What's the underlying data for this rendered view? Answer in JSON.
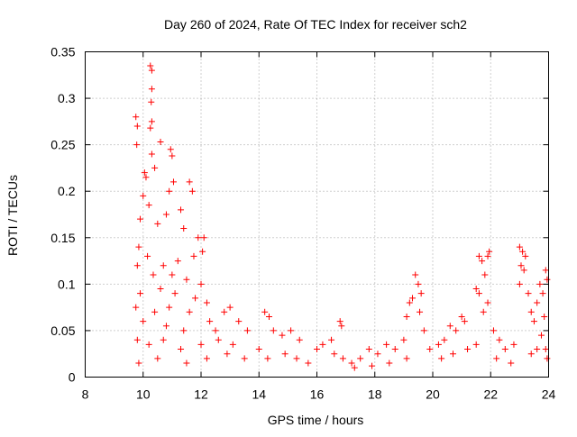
{
  "chart_data": {
    "type": "scatter",
    "title": "Day 260 of 2024, Rate Of TEC Index for receiver sch2",
    "xlabel": "GPS time / hours",
    "ylabel": "ROTI / TECUs",
    "xlim": [
      8,
      24
    ],
    "ylim": [
      0,
      0.35
    ],
    "x_ticks": [
      8,
      10,
      12,
      14,
      16,
      18,
      20,
      22,
      24
    ],
    "x_tick_labels": [
      "8",
      "10",
      "12",
      "14",
      "16",
      "18",
      "20",
      "22",
      "24"
    ],
    "y_ticks": [
      0,
      0.05,
      0.1,
      0.15,
      0.2,
      0.25,
      0.3,
      0.35
    ],
    "y_tick_labels": [
      "0",
      "0.05",
      "0.1",
      "0.15",
      "0.2",
      "0.25",
      "0.3",
      "0.35"
    ],
    "grid": true,
    "marker": "+",
    "marker_color": "#ff0000",
    "series": [
      {
        "name": "ROTI",
        "points": [
          [
            9.75,
            0.28
          ],
          [
            9.8,
            0.27
          ],
          [
            9.78,
            0.25
          ],
          [
            10.25,
            0.335
          ],
          [
            10.3,
            0.33
          ],
          [
            10.3,
            0.31
          ],
          [
            10.28,
            0.296
          ],
          [
            10.3,
            0.275
          ],
          [
            10.25,
            0.268
          ],
          [
            10.6,
            0.253
          ],
          [
            10.95,
            0.245
          ],
          [
            11.0,
            0.238
          ],
          [
            10.05,
            0.22
          ],
          [
            10.1,
            0.215
          ],
          [
            10.3,
            0.24
          ],
          [
            10.4,
            0.225
          ],
          [
            11.05,
            0.21
          ],
          [
            10.9,
            0.2
          ],
          [
            11.6,
            0.21
          ],
          [
            11.7,
            0.2
          ],
          [
            10.0,
            0.195
          ],
          [
            10.2,
            0.185
          ],
          [
            10.8,
            0.175
          ],
          [
            11.3,
            0.18
          ],
          [
            9.9,
            0.17
          ],
          [
            10.5,
            0.165
          ],
          [
            11.4,
            0.16
          ],
          [
            11.9,
            0.15
          ],
          [
            12.1,
            0.15
          ],
          [
            12.05,
            0.135
          ],
          [
            9.85,
            0.14
          ],
          [
            10.15,
            0.13
          ],
          [
            10.7,
            0.12
          ],
          [
            11.2,
            0.125
          ],
          [
            11.75,
            0.13
          ],
          [
            9.8,
            0.12
          ],
          [
            10.35,
            0.11
          ],
          [
            11.0,
            0.11
          ],
          [
            11.5,
            0.105
          ],
          [
            12.0,
            0.1
          ],
          [
            9.9,
            0.09
          ],
          [
            10.6,
            0.095
          ],
          [
            11.1,
            0.09
          ],
          [
            11.8,
            0.085
          ],
          [
            12.2,
            0.08
          ],
          [
            9.75,
            0.075
          ],
          [
            10.4,
            0.07
          ],
          [
            10.9,
            0.075
          ],
          [
            11.6,
            0.07
          ],
          [
            12.3,
            0.06
          ],
          [
            10.0,
            0.06
          ],
          [
            10.8,
            0.055
          ],
          [
            11.4,
            0.05
          ],
          [
            12.5,
            0.05
          ],
          [
            12.8,
            0.07
          ],
          [
            13.0,
            0.075
          ],
          [
            13.3,
            0.06
          ],
          [
            9.8,
            0.04
          ],
          [
            10.2,
            0.035
          ],
          [
            10.7,
            0.04
          ],
          [
            11.3,
            0.03
          ],
          [
            12.0,
            0.035
          ],
          [
            12.6,
            0.04
          ],
          [
            13.1,
            0.035
          ],
          [
            13.6,
            0.05
          ],
          [
            9.85,
            0.015
          ],
          [
            10.5,
            0.02
          ],
          [
            11.5,
            0.015
          ],
          [
            12.2,
            0.02
          ],
          [
            12.9,
            0.025
          ],
          [
            13.5,
            0.02
          ],
          [
            14.0,
            0.03
          ],
          [
            14.2,
            0.07
          ],
          [
            14.35,
            0.065
          ],
          [
            14.5,
            0.05
          ],
          [
            14.8,
            0.045
          ],
          [
            15.1,
            0.05
          ],
          [
            15.4,
            0.04
          ],
          [
            14.3,
            0.02
          ],
          [
            14.9,
            0.025
          ],
          [
            15.3,
            0.02
          ],
          [
            15.7,
            0.015
          ],
          [
            16.0,
            0.03
          ],
          [
            16.2,
            0.035
          ],
          [
            16.5,
            0.04
          ],
          [
            16.8,
            0.06
          ],
          [
            16.85,
            0.055
          ],
          [
            16.6,
            0.025
          ],
          [
            16.9,
            0.02
          ],
          [
            17.2,
            0.015
          ],
          [
            17.5,
            0.02
          ],
          [
            17.8,
            0.03
          ],
          [
            18.1,
            0.025
          ],
          [
            18.4,
            0.035
          ],
          [
            18.7,
            0.03
          ],
          [
            19.0,
            0.04
          ],
          [
            17.3,
            0.01
          ],
          [
            17.9,
            0.012
          ],
          [
            18.5,
            0.015
          ],
          [
            19.1,
            0.02
          ],
          [
            19.4,
            0.11
          ],
          [
            19.5,
            0.1
          ],
          [
            19.3,
            0.085
          ],
          [
            19.2,
            0.08
          ],
          [
            19.1,
            0.065
          ],
          [
            19.6,
            0.09
          ],
          [
            19.55,
            0.07
          ],
          [
            19.7,
            0.05
          ],
          [
            19.9,
            0.03
          ],
          [
            20.2,
            0.035
          ],
          [
            20.4,
            0.04
          ],
          [
            20.6,
            0.055
          ],
          [
            20.8,
            0.05
          ],
          [
            21.0,
            0.065
          ],
          [
            21.1,
            0.06
          ],
          [
            20.3,
            0.02
          ],
          [
            20.7,
            0.025
          ],
          [
            21.2,
            0.03
          ],
          [
            21.5,
            0.035
          ],
          [
            21.6,
            0.13
          ],
          [
            21.7,
            0.125
          ],
          [
            21.9,
            0.13
          ],
          [
            21.95,
            0.135
          ],
          [
            21.8,
            0.11
          ],
          [
            21.6,
            0.09
          ],
          [
            21.5,
            0.095
          ],
          [
            21.75,
            0.07
          ],
          [
            21.9,
            0.08
          ],
          [
            22.1,
            0.05
          ],
          [
            22.3,
            0.04
          ],
          [
            22.5,
            0.03
          ],
          [
            22.8,
            0.035
          ],
          [
            22.2,
            0.02
          ],
          [
            22.7,
            0.015
          ],
          [
            23.0,
            0.14
          ],
          [
            23.1,
            0.135
          ],
          [
            23.05,
            0.12
          ],
          [
            23.15,
            0.115
          ],
          [
            23.2,
            0.13
          ],
          [
            23.0,
            0.1
          ],
          [
            23.3,
            0.09
          ],
          [
            23.4,
            0.07
          ],
          [
            23.5,
            0.06
          ],
          [
            23.6,
            0.08
          ],
          [
            23.7,
            0.1
          ],
          [
            23.8,
            0.09
          ],
          [
            23.9,
            0.115
          ],
          [
            23.95,
            0.105
          ],
          [
            23.85,
            0.065
          ],
          [
            23.75,
            0.045
          ],
          [
            23.6,
            0.03
          ],
          [
            23.4,
            0.025
          ],
          [
            23.9,
            0.03
          ],
          [
            23.95,
            0.02
          ]
        ]
      }
    ]
  }
}
